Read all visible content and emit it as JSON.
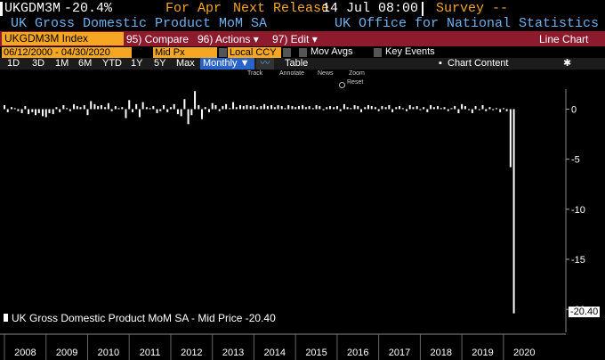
{
  "header": {
    "ticker": "UKGDM3M",
    "change": "-20.4%",
    "period": "For Apr",
    "next_release_label": "Next Release",
    "next_release": "14 Jul 08:00",
    "survey": "Survey --",
    "name": "UK Gross Domestic Product MoM SA",
    "source": "UK Office for National Statistics"
  },
  "toolbar": {
    "security": "UKGDM3M Index",
    "compare": "95) Compare",
    "actions": "96) Actions ▾",
    "edit": "97) Edit ▾",
    "chart_type": "Line Chart"
  },
  "settings": {
    "date_range": "06/12/2000 - 04/30/2020",
    "price": "Mid Px",
    "currency": "Local CCY",
    "mov_avgs": "Mov Avgs",
    "key_events": "Key Events"
  },
  "periods": [
    "1D",
    "3D",
    "1M",
    "6M",
    "YTD",
    "1Y",
    "5Y",
    "Max"
  ],
  "frequency": "Monthly ▼",
  "table": "Table",
  "chart_content": "Chart Content",
  "tools": [
    "Track",
    "Annotate",
    "News",
    "Zoom"
  ],
  "reset": "Reset",
  "chart_data": {
    "type": "bar",
    "legend": "UK Gross Domestic Product MoM SA - Mid Price -20.40",
    "last_value": "-20.40",
    "xlim": [
      2008,
      2021.5
    ],
    "xticks": [
      2008,
      2009,
      2010,
      2011,
      2012,
      2013,
      2014,
      2015,
      2016,
      2017,
      2018,
      2019,
      2020
    ],
    "ylim": [
      -22.3,
      2
    ],
    "yticks": [
      0,
      -5,
      -10,
      -15,
      -20
    ],
    "x": [
      2008,
      2008.08,
      2008.17,
      2008.25,
      2008.33,
      2008.42,
      2008.5,
      2008.58,
      2008.67,
      2008.75,
      2008.83,
      2008.92,
      2009,
      2009.08,
      2009.17,
      2009.25,
      2009.33,
      2009.42,
      2009.5,
      2009.58,
      2009.67,
      2009.75,
      2009.83,
      2009.92,
      2010,
      2010.08,
      2010.17,
      2010.25,
      2010.33,
      2010.42,
      2010.5,
      2010.58,
      2010.67,
      2010.75,
      2010.83,
      2010.92,
      2011,
      2011.08,
      2011.17,
      2011.25,
      2011.33,
      2011.42,
      2011.5,
      2011.58,
      2011.67,
      2011.75,
      2011.83,
      2011.92,
      2012,
      2012.08,
      2012.17,
      2012.25,
      2012.33,
      2012.42,
      2012.5,
      2012.58,
      2012.67,
      2012.75,
      2012.83,
      2012.92,
      2013,
      2013.08,
      2013.17,
      2013.25,
      2013.33,
      2013.42,
      2013.5,
      2013.58,
      2013.67,
      2013.75,
      2013.83,
      2013.92,
      2014,
      2014.08,
      2014.17,
      2014.25,
      2014.33,
      2014.42,
      2014.5,
      2014.58,
      2014.67,
      2014.75,
      2014.83,
      2014.92,
      2015,
      2015.08,
      2015.17,
      2015.25,
      2015.33,
      2015.42,
      2015.5,
      2015.58,
      2015.67,
      2015.75,
      2015.83,
      2015.92,
      2016,
      2016.08,
      2016.17,
      2016.25,
      2016.33,
      2016.42,
      2016.5,
      2016.58,
      2016.67,
      2016.75,
      2016.83,
      2016.92,
      2017,
      2017.08,
      2017.17,
      2017.25,
      2017.33,
      2017.42,
      2017.5,
      2017.58,
      2017.67,
      2017.75,
      2017.83,
      2017.92,
      2018,
      2018.08,
      2018.17,
      2018.25,
      2018.33,
      2018.42,
      2018.5,
      2018.58,
      2018.67,
      2018.75,
      2018.83,
      2018.92,
      2019,
      2019.08,
      2019.17,
      2019.25,
      2019.33,
      2019.42,
      2019.5,
      2019.58,
      2019.67,
      2019.75,
      2019.83,
      2019.92,
      2020,
      2020.08,
      2020.17,
      2020.25
    ],
    "series": [
      {
        "name": "UK Gross Domestic Product MoM SA - Mid Price",
        "color": "#ffffff",
        "values": [
          0.4,
          -0.3,
          0.2,
          0.1,
          -0.2,
          -0.4,
          0.3,
          -0.5,
          -0.3,
          -0.6,
          -0.4,
          -0.7,
          -0.8,
          -0.4,
          -0.5,
          0.2,
          -0.3,
          0.4,
          0.1,
          -0.2,
          0.5,
          0.3,
          0.2,
          0.4,
          -0.6,
          0.8,
          0.5,
          0.3,
          0.4,
          0.2,
          0.6,
          -0.2,
          0.3,
          0.1,
          0.2,
          -0.9,
          0.9,
          -0.3,
          0.5,
          -0.8,
          0.7,
          0.2,
          0.1,
          0.3,
          -0.4,
          -0.2,
          0.4,
          -0.3,
          0.2,
          0.5,
          -0.5,
          -0.7,
          1.0,
          -1.5,
          -0.6,
          1.8,
          0.4,
          -1.0,
          0.2,
          -0.3,
          0.6,
          0.4,
          -0.2,
          0.3,
          0.5,
          0.1,
          0.7,
          0.2,
          0.4,
          0.3,
          0.4,
          0.3,
          0.4,
          0.2,
          0.3,
          0.5,
          0.3,
          0.4,
          0.2,
          0.4,
          0.3,
          0.1,
          0.4,
          0.3,
          0.2,
          0.3,
          0.4,
          0.2,
          0.3,
          0.1,
          0.4,
          0.3,
          -0.1,
          0.2,
          0.3,
          0.2,
          0.3,
          -0.2,
          0.5,
          0.2,
          0.1,
          0.4,
          0.3,
          -0.3,
          0.2,
          0.4,
          0.3,
          0.2,
          -0.2,
          0.3,
          0.2,
          0.4,
          -0.3,
          0.2,
          0.3,
          0.1,
          -0.2,
          0.4,
          0.2,
          0.3,
          -0.1,
          0.2,
          -0.3,
          0.4,
          0.2,
          0.3,
          0.1,
          0.2,
          -0.2,
          0.1,
          0.3,
          -0.4,
          0.5,
          0.3,
          -0.1,
          -0.4,
          0.3,
          -0.1,
          0.4,
          -0.2,
          0.2,
          -0.1,
          0.1,
          -0.3,
          0.1,
          -0.2,
          -5.8,
          -20.4
        ]
      }
    ]
  }
}
